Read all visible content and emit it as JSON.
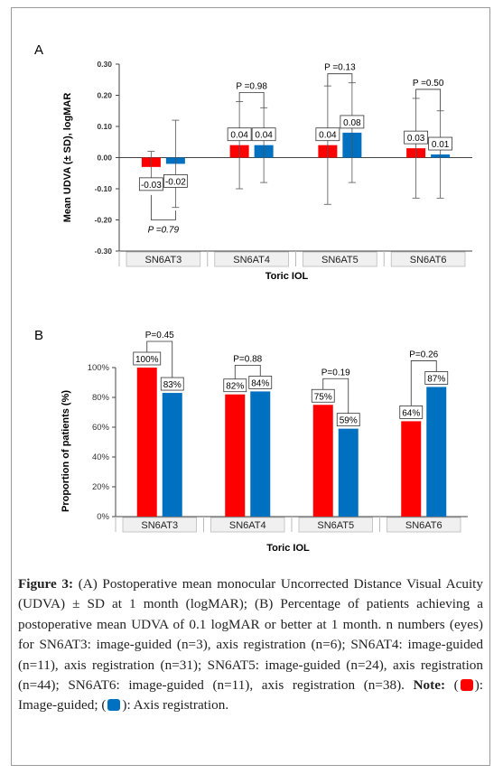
{
  "colors": {
    "image_guided": "#ff0000",
    "axis_registration": "#0070c0"
  },
  "chart_data": [
    {
      "type": "bar",
      "panel_label": "A",
      "categories": [
        "SN6AT3",
        "SN6AT4",
        "SN6AT5",
        "SN6AT6"
      ],
      "series": [
        {
          "values": [
            -0.03,
            0.04,
            0.04,
            0.03
          ],
          "sd": [
            0.05,
            0.14,
            0.19,
            0.16
          ],
          "labels": [
            "-0.03",
            "0.04",
            "0.04",
            "0.03"
          ]
        },
        {
          "values": [
            -0.02,
            0.04,
            0.08,
            0.01
          ],
          "sd": [
            0.14,
            0.12,
            0.16,
            0.14
          ],
          "labels": [
            "-0.02",
            "0.04",
            "0.08",
            "0.01"
          ]
        }
      ],
      "p_values": [
        "P =0.79",
        "P =0.98",
        "P =0.13",
        "P =0.50"
      ],
      "ylim": [
        -0.3,
        0.3
      ],
      "yticks": [
        "0.30",
        "0.20",
        "0.10",
        "0.00",
        "-0.10",
        "-0.20",
        "-0.30"
      ],
      "ylabel": "Mean UDVA (± SD), logMAR",
      "xlabel": "Toric IOL"
    },
    {
      "type": "bar",
      "panel_label": "B",
      "categories": [
        "SN6AT3",
        "SN6AT4",
        "SN6AT5",
        "SN6AT6"
      ],
      "series": [
        {
          "values": [
            100,
            82,
            75,
            64
          ],
          "labels": [
            "100%",
            "82%",
            "75%",
            "64%"
          ]
        },
        {
          "values": [
            83,
            84,
            59,
            87
          ],
          "labels": [
            "83%",
            "84%",
            "59%",
            "87%"
          ]
        }
      ],
      "p_values": [
        "P=0.45",
        "P=0.88",
        "P=0.19",
        "P=0.26"
      ],
      "ylim": [
        0,
        100
      ],
      "yticks": [
        "100%",
        "80%",
        "60%",
        "40%",
        "20%",
        "0%"
      ],
      "ylabel": "Proportion of patients (%)",
      "xlabel": "Toric IOL"
    }
  ],
  "caption": {
    "figure_label": "Figure 3:",
    "text1": " (A) Postoperative mean monocular Uncorrected Distance Visual Acuity (UDVA) ± SD at 1 month (logMAR); (B) Percentage of patients achieving a postoperative mean UDVA of 0.1 logMAR or better at 1 month. n numbers (eyes) for SN6AT3: image-guided (n=3), axis registration (n=6); SN6AT4: image-guided (n=11), axis registration (n=31); SN6AT5: image-guided (n=24), axis registration (n=44); SN6AT6: image-guided (n=11), axis registration (n=38). ",
    "note_label": "Note:",
    "text2": " (",
    "legend_image_guided": "): Image-guided; (",
    "legend_axis": "): Axis registration."
  }
}
